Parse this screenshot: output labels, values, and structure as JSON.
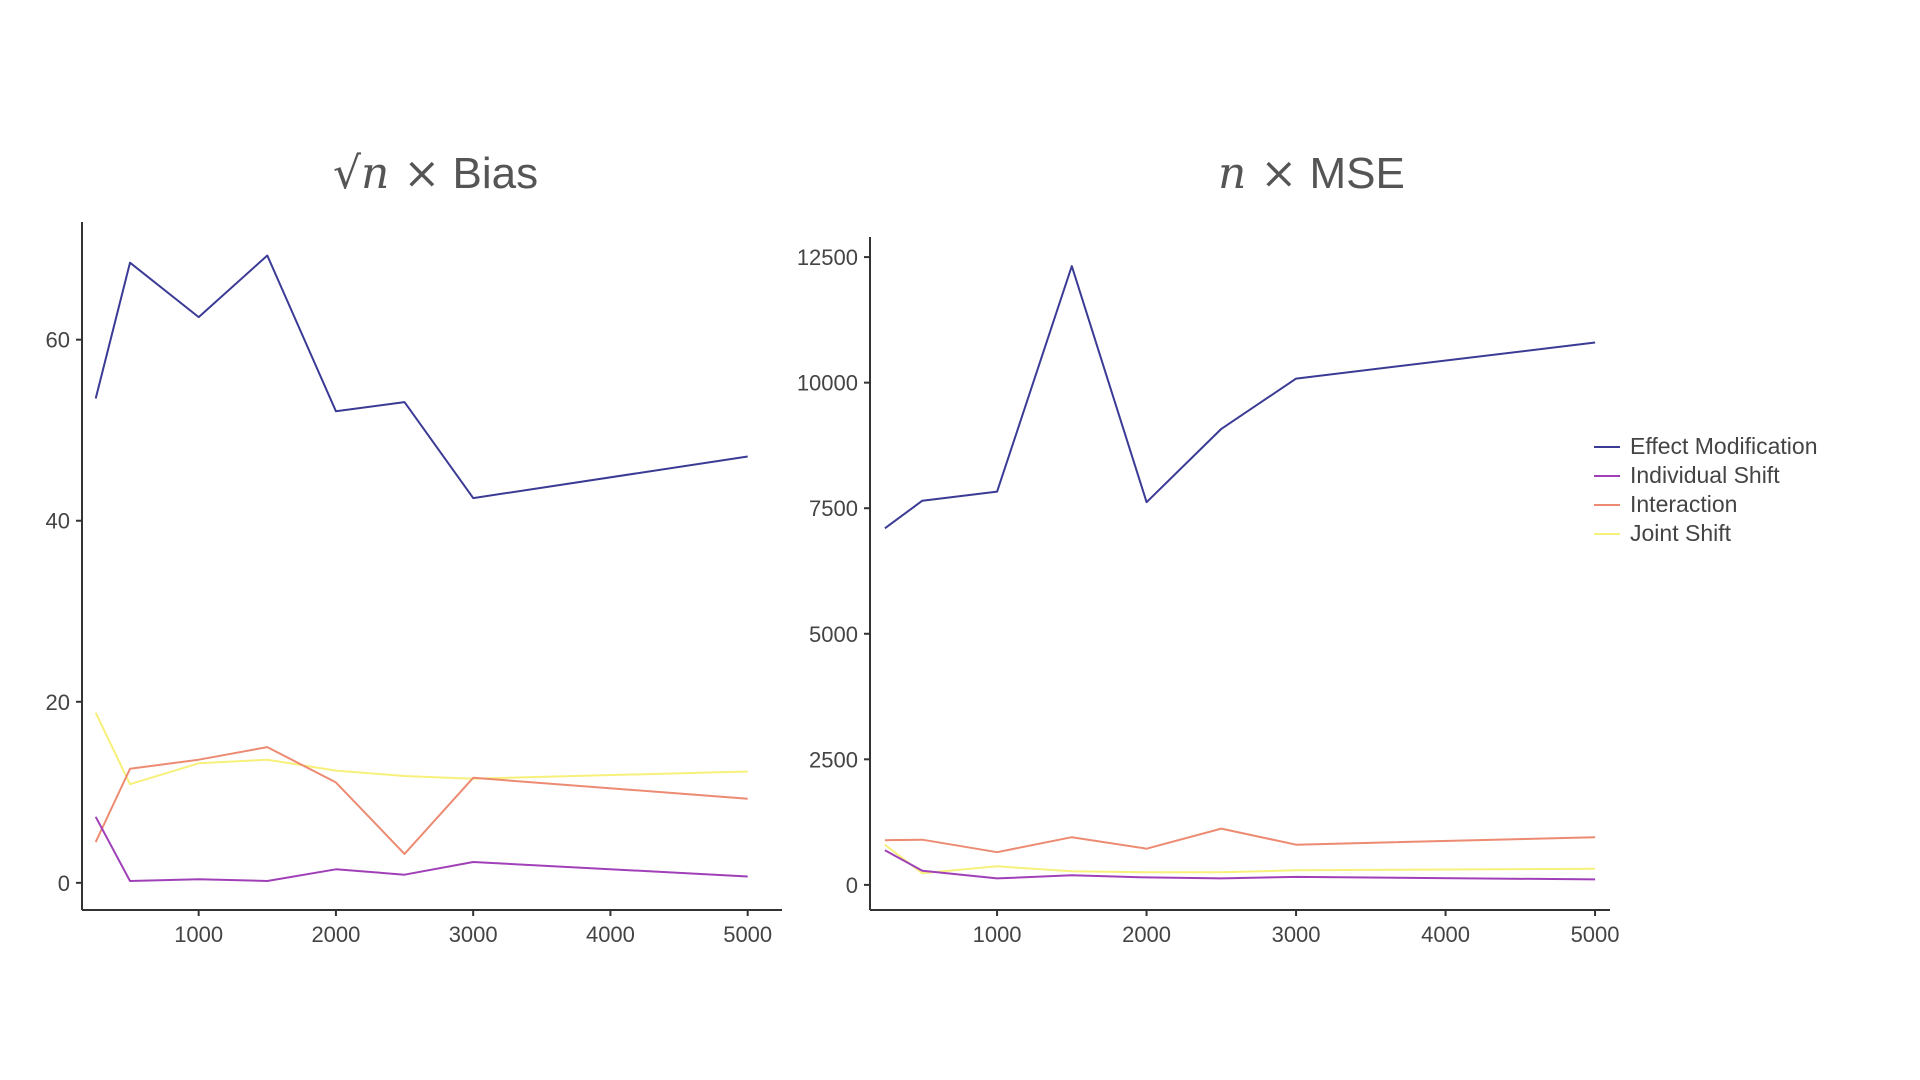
{
  "colors": {
    "Effect Modification": "#3b3b96",
    "Individual Shift": "#a040b8",
    "Interaction": "#ec8b72",
    "Joint Shift": "#f7f07a"
  },
  "legend": {
    "items": [
      "Effect Modification",
      "Individual Shift",
      "Interaction",
      "Joint Shift"
    ]
  },
  "chart_data": [
    {
      "type": "line",
      "title_prefix": "√n ×",
      "title": "Bias",
      "xlabel": "",
      "ylabel": "",
      "x": [
        250,
        500,
        1000,
        1500,
        2000,
        2500,
        3000,
        5000
      ],
      "xlim": [
        150,
        5250
      ],
      "ylim": [
        -3,
        73
      ],
      "xticks": [
        1000,
        2000,
        3000,
        4000,
        5000
      ],
      "yticks": [
        0,
        20,
        40,
        60
      ],
      "grid": false,
      "series": [
        {
          "name": "Effect Modification",
          "values": [
            53.5,
            68.5,
            62.5,
            69.3,
            52.1,
            53.1,
            42.5,
            47.1
          ]
        },
        {
          "name": "Individual Shift",
          "values": [
            7.3,
            0.2,
            0.4,
            0.2,
            1.5,
            0.9,
            2.3,
            0.7
          ]
        },
        {
          "name": "Interaction",
          "values": [
            4.5,
            12.6,
            13.6,
            15.0,
            11.1,
            3.2,
            11.6,
            9.3
          ]
        },
        {
          "name": "Joint Shift",
          "values": [
            18.8,
            10.9,
            13.2,
            13.6,
            12.4,
            11.8,
            11.5,
            12.3
          ]
        }
      ]
    },
    {
      "type": "line",
      "title_prefix": "n ×",
      "title": "MSE",
      "xlabel": "",
      "ylabel": "",
      "x": [
        250,
        500,
        1000,
        1500,
        2000,
        2500,
        3000,
        5000
      ],
      "xlim": [
        150,
        5100
      ],
      "ylim": [
        -500,
        12900
      ],
      "xticks": [
        1000,
        2000,
        3000,
        4000,
        5000
      ],
      "yticks": [
        0,
        2500,
        5000,
        7500,
        10000,
        12500
      ],
      "grid": false,
      "legend_position": "right",
      "series": [
        {
          "name": "Effect Modification",
          "values": [
            7100,
            7650,
            7830,
            12320,
            7620,
            9080,
            10080,
            10800
          ]
        },
        {
          "name": "Individual Shift",
          "values": [
            690,
            280,
            130,
            190,
            150,
            130,
            160,
            110
          ]
        },
        {
          "name": "Interaction",
          "values": [
            890,
            900,
            650,
            950,
            720,
            1120,
            800,
            950
          ]
        },
        {
          "name": "Joint Shift",
          "values": [
            800,
            230,
            370,
            270,
            250,
            250,
            290,
            320
          ]
        }
      ]
    }
  ]
}
